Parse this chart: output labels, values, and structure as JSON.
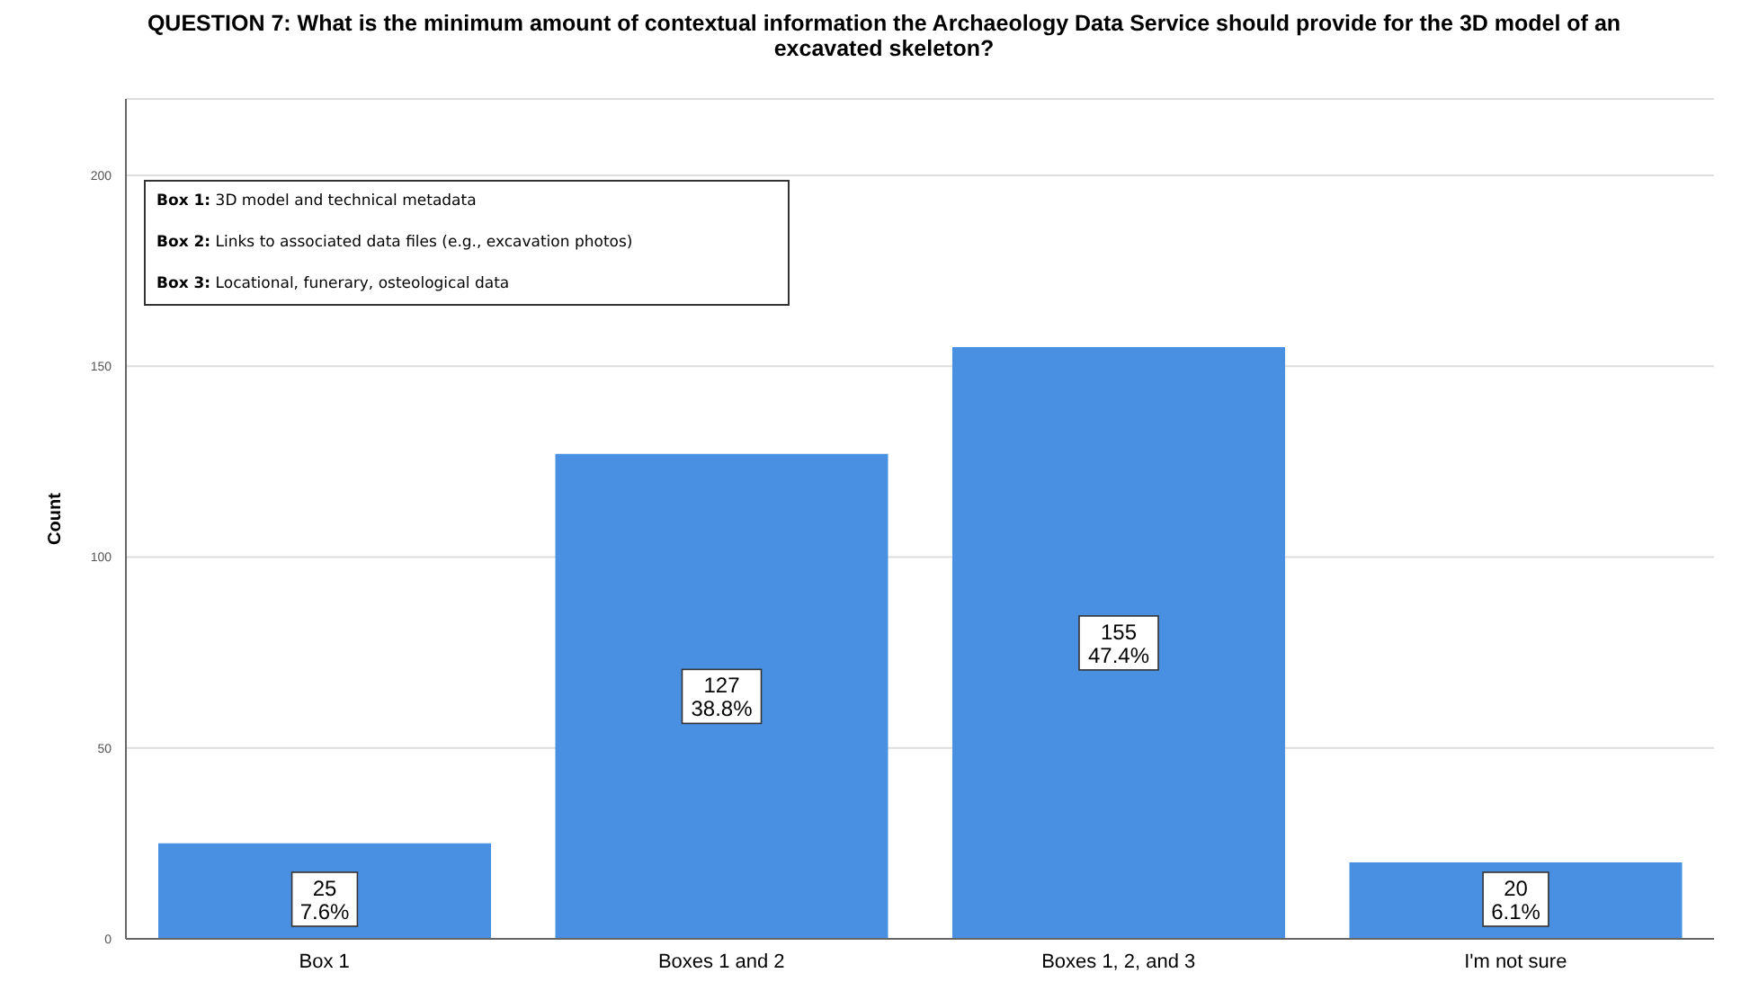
{
  "chart_data": {
    "type": "bar",
    "title": "QUESTION 7: What is the minimum amount of contextual information the Archaeology Data Service should provide for the 3D model of an excavated skeleton?",
    "ylabel": "Count",
    "categories": [
      "Box 1",
      "Boxes 1 and 2",
      "Boxes 1, 2, and 3",
      "I'm not sure"
    ],
    "values": [
      25,
      127,
      155,
      20
    ],
    "value_labels": [
      "25\n7.6%",
      "127\n38.8%",
      "155\n47.4%",
      "20\n6.1%"
    ],
    "color": "#4a90e2",
    "ylim": [
      0,
      220
    ],
    "yticks": [
      0,
      50,
      100,
      150,
      200
    ],
    "grid": "y",
    "annotations": [
      "Box 1:  3D model and technical metadata",
      "Box 2:  Links to associated data files (e.g., excavation photos)",
      "Box 3:  Locational, funerary, osteological data"
    ]
  }
}
